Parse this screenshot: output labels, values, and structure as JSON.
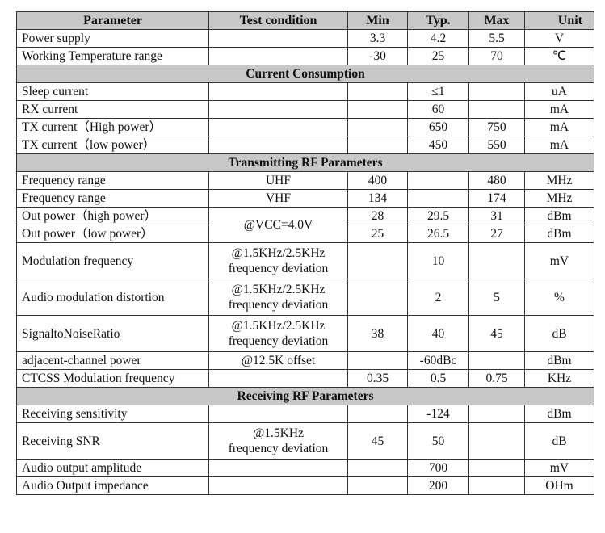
{
  "headers": [
    "Parameter",
    "Test condition",
    "Min",
    "Typ.",
    "Max",
    "Unit"
  ],
  "rows": [
    {
      "p": "Power supply",
      "c": "",
      "min": "3.3",
      "typ": "4.2",
      "max": "5.5",
      "u": "V"
    },
    {
      "p": "Working Temperature range",
      "c": "",
      "min": "-30",
      "typ": "25",
      "max": "70",
      "u": "℃"
    },
    {
      "section": "Current Consumption"
    },
    {
      "p": "Sleep current",
      "c": "",
      "min": "",
      "typ": "≤1",
      "max": "",
      "u": "uA"
    },
    {
      "p": "RX current",
      "c": "",
      "min": "",
      "typ": "60",
      "max": "",
      "u": "mA"
    },
    {
      "p": "TX current（High power）",
      "c": "",
      "min": "",
      "typ": "650",
      "max": "750",
      "u": "mA"
    },
    {
      "p": "TX current（low power）",
      "c": "",
      "min": "",
      "typ": "450",
      "max": "550",
      "u": "mA"
    },
    {
      "section": "Transmitting RF Parameters"
    },
    {
      "p": "Frequency range",
      "c": "UHF",
      "min": "400",
      "typ": "",
      "max": "480",
      "u": "MHz"
    },
    {
      "p": "Frequency range",
      "c": "VHF",
      "min": "134",
      "typ": "",
      "max": "174",
      "u": "MHz"
    },
    {
      "p": "Out power（high power）",
      "c": "@VCC=4.0V",
      "span": 2,
      "min": "28",
      "typ": "29.5",
      "max": "31",
      "u": "dBm"
    },
    {
      "p": "Out power（low power）",
      "skipc": true,
      "min": "25",
      "typ": "26.5",
      "max": "27",
      "u": "dBm"
    },
    {
      "p": "Modulation frequency",
      "c": "@1.5KHz/2.5KHz\nfrequency deviation",
      "tall": true,
      "min": "",
      "typ": "10",
      "max": "",
      "u": "mV"
    },
    {
      "p": "Audio modulation distortion",
      "c": "@1.5KHz/2.5KHz\nfrequency deviation",
      "tall": true,
      "min": "",
      "typ": "2",
      "max": "5",
      "u": "%"
    },
    {
      "p": "SignaltoNoiseRatio",
      "c": "@1.5KHz/2.5KHz\nfrequency deviation",
      "tall": true,
      "min": "38",
      "typ": "40",
      "max": "45",
      "u": "dB"
    },
    {
      "p": "adjacent-channel power",
      "c": "@12.5K offset",
      "min": "",
      "typ": "-60dBc",
      "max": "",
      "u": "dBm"
    },
    {
      "p": "CTCSS Modulation frequency",
      "c": "",
      "min": "0.35",
      "typ": "0.5",
      "max": "0.75",
      "u": "KHz"
    },
    {
      "section": "Receiving RF Parameters"
    },
    {
      "p": "Receiving sensitivity",
      "c": "",
      "min": "",
      "typ": "-124",
      "max": "",
      "u": "dBm"
    },
    {
      "p": "Receiving SNR",
      "c": "@1.5KHz\nfrequency deviation",
      "tall": true,
      "min": "45",
      "typ": "50",
      "max": "",
      "u": "dB"
    },
    {
      "p": "Audio output amplitude",
      "c": "",
      "min": "",
      "typ": "700",
      "max": "",
      "u": "mV"
    },
    {
      "p": "Audio Output impedance",
      "c": "",
      "min": "",
      "typ": "200",
      "max": "",
      "u": "OHm"
    }
  ]
}
